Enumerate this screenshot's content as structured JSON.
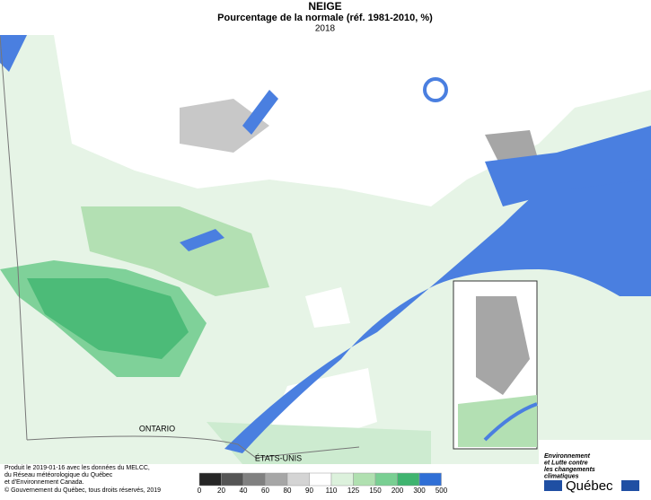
{
  "header": {
    "title": "NEIGE",
    "subtitle": "Pourcentage de la normale (réf. 1981-2010, %)",
    "year": "2018"
  },
  "map": {
    "labels": [
      "ONTARIO",
      "ÉTATS-UNIS"
    ]
  },
  "credits": [
    "Produit le 2019-01-16 avec les données du MELCC,",
    "du Réseau météorologique du Québec",
    "et d'Environnement Canada.",
    "© Gouvernement du Québec, tous droits réservés, 2019"
  ],
  "legend": {
    "ticks": [
      0,
      20,
      40,
      60,
      80,
      90,
      110,
      125,
      150,
      200,
      300,
      500
    ],
    "colors": [
      "#262626",
      "#555555",
      "#808080",
      "#a6a6a6",
      "#d4d4d4",
      "#ffffff",
      "#dcf1dc",
      "#b0e0b0",
      "#79cf92",
      "#3fb46f",
      "#2f6fd6"
    ]
  },
  "logo": {
    "lines": [
      "Environnement",
      "et Lutte contre",
      "les changements",
      "climatiques"
    ],
    "name": "Québec"
  }
}
